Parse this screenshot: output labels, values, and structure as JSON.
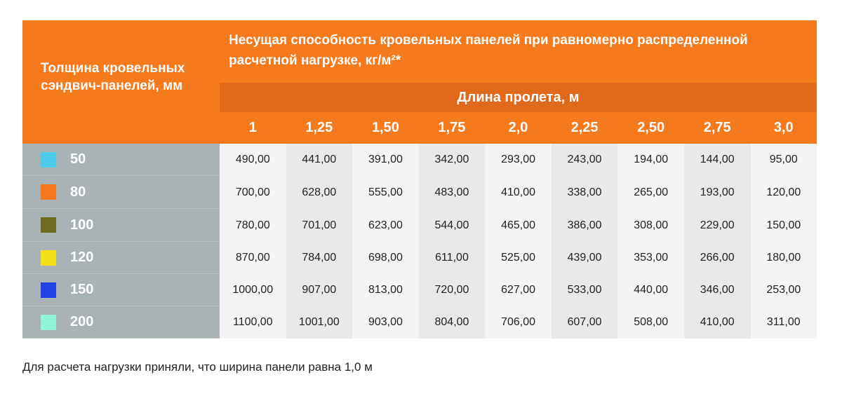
{
  "header": {
    "corner_label": "Толщина кровельных сэндвич-панелей, мм",
    "main_title": "Несущая способность кровельных панелей при равномерно распределенной расчетной нагрузке, кг/м²*",
    "span_label": "Длина пролета, м",
    "lengths": [
      "1",
      "1,25",
      "1,50",
      "1,75",
      "2,0",
      "2,25",
      "2,50",
      "2,75",
      "3,0"
    ]
  },
  "rows": [
    {
      "thickness": "50",
      "color": "#4fc9ec",
      "values": [
        "490,00",
        "441,00",
        "391,00",
        "342,00",
        "293,00",
        "243,00",
        "194,00",
        "144,00",
        "95,00"
      ]
    },
    {
      "thickness": "80",
      "color": "#f47a1d",
      "values": [
        "700,00",
        "628,00",
        "555,00",
        "483,00",
        "410,00",
        "338,00",
        "265,00",
        "193,00",
        "120,00"
      ]
    },
    {
      "thickness": "100",
      "color": "#6e6b22",
      "values": [
        "780,00",
        "701,00",
        "623,00",
        "544,00",
        "465,00",
        "386,00",
        "308,00",
        "229,00",
        "150,00"
      ]
    },
    {
      "thickness": "120",
      "color": "#f2e01b",
      "values": [
        "870,00",
        "784,00",
        "698,00",
        "611,00",
        "525,00",
        "439,00",
        "353,00",
        "266,00",
        "180,00"
      ]
    },
    {
      "thickness": "150",
      "color": "#2443e6",
      "values": [
        "1000,00",
        "907,00",
        "813,00",
        "720,00",
        "627,00",
        "533,00",
        "440,00",
        "346,00",
        "253,00"
      ]
    },
    {
      "thickness": "200",
      "color": "#8ff3d5",
      "values": [
        "1100,00",
        "1001,00",
        "903,00",
        "804,00",
        "706,00",
        "607,00",
        "508,00",
        "410,00",
        "311,00"
      ]
    }
  ],
  "footnote": "Для расчета нагрузки приняли, что ширина панели равна 1,0 м"
}
